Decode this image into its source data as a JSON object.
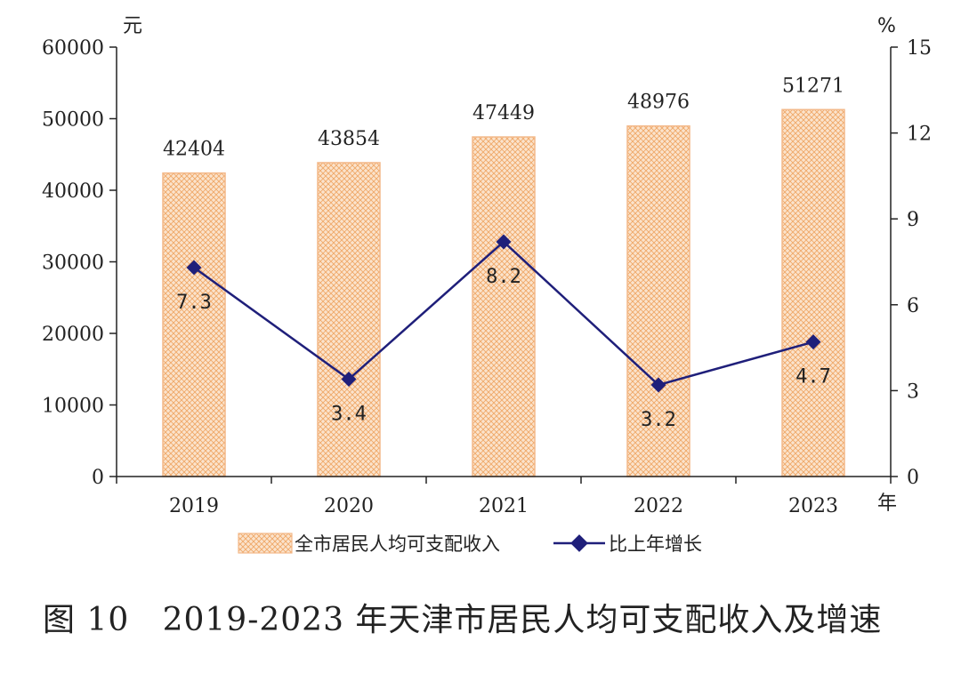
{
  "chart_data": {
    "type": "bar",
    "title": "图 10   2019-2023 年天津市居民人均可支配收入及增速",
    "categories": [
      "2019",
      "2020",
      "2021",
      "2022",
      "2023"
    ],
    "xlabel": "年",
    "ylabel_left": "元",
    "ylabel_right": "%",
    "ylim_left": [
      0,
      60000
    ],
    "ylim_right": [
      0,
      15
    ],
    "yticks_left": [
      "0",
      "10000",
      "20000",
      "30000",
      "40000",
      "50000",
      "60000"
    ],
    "yticks_right": [
      "0",
      "3",
      "6",
      "9",
      "12",
      "15"
    ],
    "series": [
      {
        "name": "全市居民人均可支配收入",
        "kind": "bar",
        "axis": "left",
        "values": [
          42404,
          43854,
          47449,
          48976,
          51271
        ],
        "labels": [
          "42404",
          "43854",
          "47449",
          "48976",
          "51271"
        ]
      },
      {
        "name": "比上年增长",
        "kind": "line",
        "axis": "right",
        "values": [
          7.3,
          3.4,
          8.2,
          3.2,
          4.7
        ],
        "labels": [
          "7.3",
          "3.4",
          "8.2",
          "3.2",
          "4.7"
        ]
      }
    ],
    "legend_position": "bottom",
    "colors": {
      "bar_fill": "#fbe3cc",
      "bar_hatch": "#f0a868",
      "bar_edge": "#f3b98a",
      "line": "#1f1f7a"
    }
  }
}
